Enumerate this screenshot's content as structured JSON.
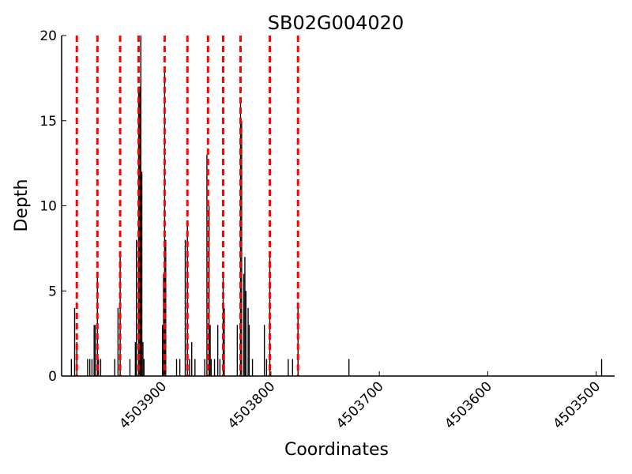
{
  "chart_data": {
    "type": "bar",
    "title": "SB02G004020",
    "x_label": "Coordinates",
    "y_label": "Depth",
    "x": [
      4503984,
      4503981,
      4503979,
      4503969,
      4503967,
      4503965,
      4503963,
      4503962,
      4503960,
      4503959,
      4503957,
      4503944,
      4503941,
      4503939,
      4503930,
      4503925,
      4503924,
      4503922,
      4503921,
      4503920,
      4503919,
      4503918,
      4503917,
      4503900,
      4503899,
      4503898,
      4503897,
      4503887,
      4503884,
      4503879,
      4503877,
      4503875,
      4503873,
      4503870,
      4503861,
      4503859,
      4503857,
      4503856,
      4503855,
      4503852,
      4503849,
      4503847,
      4503844,
      4503843,
      4503831,
      4503828,
      4503827,
      4503825,
      4503824,
      4503823,
      4503821,
      4503820,
      4503817,
      4503806,
      4503804,
      4503801,
      4503784,
      4503780,
      4503775,
      4503728,
      4503495
    ],
    "values": [
      1,
      4,
      2,
      1,
      1,
      1,
      3,
      3,
      6,
      1,
      1,
      1,
      4,
      7,
      1,
      2,
      8,
      17,
      17,
      20,
      12,
      2,
      1,
      3,
      6,
      18,
      8,
      1,
      1,
      8,
      9,
      1,
      2,
      1,
      1,
      13,
      10,
      3,
      1,
      1,
      3,
      1,
      6,
      4,
      3,
      16,
      15,
      6,
      7,
      5,
      4,
      3,
      1,
      3,
      1,
      7,
      1,
      1,
      4,
      1,
      1
    ],
    "color": "#000000",
    "markers": [
      4503979,
      4503960,
      4503939,
      4503922,
      4503898,
      4503877,
      4503858,
      4503844,
      4503828,
      4503801,
      4503775
    ],
    "marker_color": "#ff0000",
    "xlim": [
      4503993,
      4503483
    ],
    "xticks": [
      4503900,
      4503800,
      4503700,
      4503600,
      4503500
    ],
    "ylim": [
      0,
      20
    ],
    "yticks": [
      0,
      5,
      10,
      15,
      20
    ]
  }
}
